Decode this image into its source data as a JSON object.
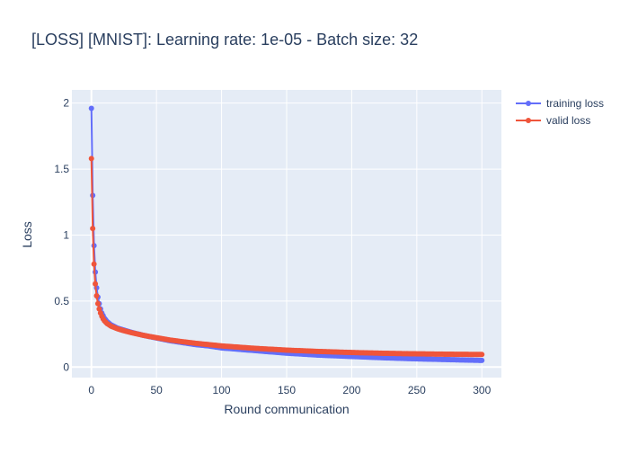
{
  "chart_data": {
    "type": "line",
    "title": "[LOSS] [MNIST]: Learning rate: 1e-05 - Batch size: 32",
    "xlabel": "Round communication",
    "ylabel": "Loss",
    "xlim": [
      -15,
      315
    ],
    "ylim": [
      -0.08,
      2.1
    ],
    "grid": true,
    "legend_position": "top-right",
    "x_ticks": [
      "0",
      "50",
      "100",
      "150",
      "200",
      "250",
      "300"
    ],
    "y_ticks": [
      "0",
      "0.5",
      "1",
      "1.5",
      "2"
    ],
    "x_tick_values": [
      0,
      50,
      100,
      150,
      200,
      250,
      300
    ],
    "y_tick_values": [
      0,
      0.5,
      1,
      1.5,
      2
    ],
    "series": [
      {
        "name": "training loss",
        "color": "#636efa",
        "x": [
          0,
          1,
          2,
          3,
          4,
          5,
          6,
          7,
          8,
          9,
          10,
          12,
          15,
          20,
          25,
          30,
          40,
          50,
          60,
          70,
          80,
          90,
          100,
          125,
          150,
          175,
          200,
          225,
          250,
          275,
          300
        ],
        "y": [
          1.96,
          1.3,
          0.92,
          0.72,
          0.6,
          0.53,
          0.48,
          0.44,
          0.41,
          0.39,
          0.37,
          0.345,
          0.32,
          0.295,
          0.28,
          0.265,
          0.24,
          0.22,
          0.2,
          0.185,
          0.17,
          0.16,
          0.145,
          0.125,
          0.105,
          0.09,
          0.08,
          0.07,
          0.062,
          0.056,
          0.05
        ]
      },
      {
        "name": "valid loss",
        "color": "#ef553b",
        "x": [
          0,
          1,
          2,
          3,
          4,
          5,
          6,
          7,
          8,
          9,
          10,
          12,
          15,
          20,
          25,
          30,
          40,
          50,
          60,
          70,
          80,
          90,
          100,
          125,
          150,
          175,
          200,
          225,
          250,
          275,
          300
        ],
        "y": [
          1.58,
          1.05,
          0.78,
          0.63,
          0.54,
          0.48,
          0.44,
          0.41,
          0.385,
          0.365,
          0.35,
          0.33,
          0.31,
          0.29,
          0.275,
          0.262,
          0.24,
          0.222,
          0.205,
          0.192,
          0.18,
          0.17,
          0.16,
          0.142,
          0.128,
          0.118,
          0.11,
          0.104,
          0.1,
          0.097,
          0.095
        ]
      }
    ]
  }
}
